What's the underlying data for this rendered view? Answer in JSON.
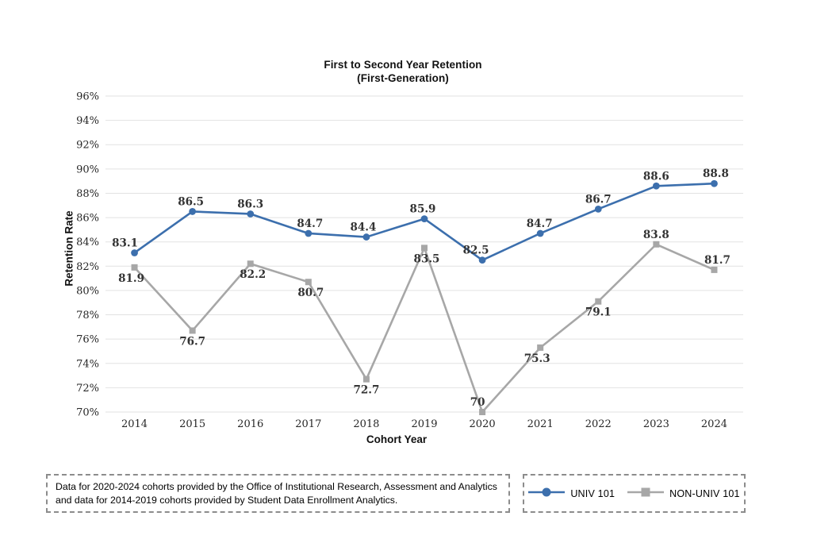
{
  "title": {
    "line1": "First to Second Year Retention",
    "line2": "(First-Generation)"
  },
  "axes": {
    "y_title": "Retention Rate",
    "x_title": "Cohort Year"
  },
  "footnote": "Data for 2020-2024 cohorts provided by the Office of Institutional Research, Assessment and Analytics and data for 2014-2019 cohorts provided by Student Data Enrollment Analytics.",
  "legend": {
    "items": [
      {
        "label": "UNIV 101",
        "color": "#3c6fad",
        "marker": "circle"
      },
      {
        "label": "NON-UNIV 101",
        "color": "#a7a7a7",
        "marker": "square"
      }
    ]
  },
  "chart_data": {
    "type": "line",
    "title": "First to Second Year Retention (First-Generation)",
    "xlabel": "Cohort Year",
    "ylabel": "Retention Rate",
    "categories": [
      "2014",
      "2015",
      "2016",
      "2017",
      "2018",
      "2019",
      "2020",
      "2021",
      "2022",
      "2023",
      "2024"
    ],
    "series": [
      {
        "name": "UNIV 101",
        "color": "#3c6fad",
        "marker": "circle",
        "values": [
          83.1,
          86.5,
          86.3,
          84.7,
          84.4,
          85.9,
          82.5,
          84.7,
          86.7,
          88.6,
          88.8
        ],
        "label_positions": [
          "above",
          "above",
          "above",
          "above",
          "above",
          "above",
          "above",
          "above",
          "above",
          "above",
          "above"
        ],
        "label_dx": [
          -12,
          -2,
          0,
          2,
          -4,
          -2,
          -8,
          -1,
          0,
          0,
          2
        ]
      },
      {
        "name": "NON-UNIV 101",
        "color": "#a7a7a7",
        "marker": "square",
        "values": [
          81.9,
          76.7,
          82.2,
          80.7,
          72.7,
          83.5,
          70,
          75.3,
          79.1,
          83.8,
          81.7
        ],
        "label_positions": [
          "below",
          "below",
          "below",
          "below",
          "below",
          "below",
          "above",
          "below",
          "below",
          "above",
          "above"
        ],
        "label_dx": [
          -4,
          0,
          3,
          3,
          0,
          3,
          -6,
          -4,
          0,
          0,
          4
        ]
      }
    ],
    "ylim": [
      70,
      96
    ],
    "ytick_step": 2,
    "ytick_suffix": "%",
    "grid": "horizontal",
    "gridline_color": "#e2e2e2",
    "legend_position": "bottom-right-box"
  }
}
